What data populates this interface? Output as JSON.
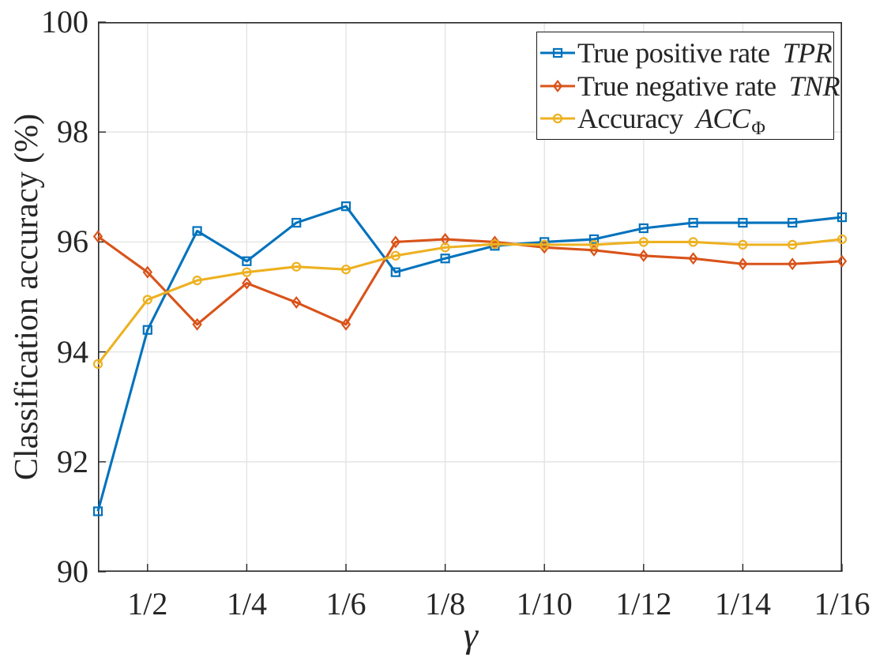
{
  "colors": {
    "background": "#ffffff",
    "axis": "#262626",
    "grid": "#e2e2e2",
    "legend_border": "#1a1a1a",
    "tpr_blue": "#0072BD",
    "tnr_red": "#D95319",
    "acc_yellow": "#EDB120"
  },
  "chart_data": {
    "type": "line",
    "title": "",
    "xlabel": "γ",
    "ylabel": "Classification accuracy (%)",
    "x_description": "γ = 1/k for k = 1..16, points equally spaced by k",
    "x": [
      "1",
      "1/2",
      "1/3",
      "1/4",
      "1/5",
      "1/6",
      "1/7",
      "1/8",
      "1/9",
      "1/10",
      "1/11",
      "1/12",
      "1/13",
      "1/14",
      "1/15",
      "1/16"
    ],
    "x_ticks": [
      {
        "index": 2,
        "label": "1/2"
      },
      {
        "index": 4,
        "label": "1/4"
      },
      {
        "index": 6,
        "label": "1/6"
      },
      {
        "index": 8,
        "label": "1/8"
      },
      {
        "index": 10,
        "label": "1/10"
      },
      {
        "index": 12,
        "label": "1/12"
      },
      {
        "index": 14,
        "label": "1/14"
      },
      {
        "index": 16,
        "label": "1/16"
      }
    ],
    "ylim": [
      90,
      100
    ],
    "y_ticks": [
      90,
      92,
      94,
      96,
      98,
      100
    ],
    "grid": true,
    "legend_position": "top-right",
    "series": [
      {
        "name": "True positive rate",
        "symbol": "TPR",
        "subscript": "",
        "color": "#0072BD",
        "marker": "square",
        "values": [
          91.1,
          94.4,
          96.2,
          95.65,
          96.35,
          96.65,
          95.45,
          95.7,
          95.93,
          96.0,
          96.05,
          96.25,
          96.35,
          96.35,
          96.35,
          96.45
        ]
      },
      {
        "name": "True negative rate",
        "symbol": "TNR",
        "subscript": "",
        "color": "#D95319",
        "marker": "diamond",
        "values": [
          96.1,
          95.45,
          94.5,
          95.25,
          94.9,
          94.5,
          96.0,
          96.05,
          96.0,
          95.9,
          95.85,
          95.75,
          95.7,
          95.6,
          95.6,
          95.65
        ]
      },
      {
        "name": "Accuracy",
        "symbol": "ACC",
        "subscript": "Φ",
        "color": "#EDB120",
        "marker": "circle",
        "values": [
          93.78,
          94.95,
          95.3,
          95.45,
          95.55,
          95.5,
          95.75,
          95.9,
          95.96,
          95.95,
          95.95,
          96.0,
          96.0,
          95.95,
          95.95,
          96.05
        ]
      }
    ]
  }
}
